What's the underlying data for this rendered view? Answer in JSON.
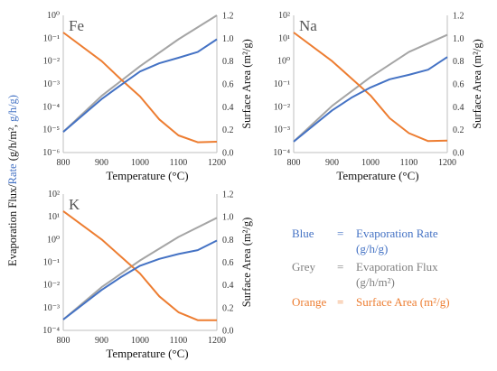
{
  "y_axis_title": {
    "black_part": "Evaporation Flux/",
    "blue_part": "Rate",
    "black_part2": " (g/h/m²,",
    "blue_part2": " g/h/g)"
  },
  "y2_axis_title": "Surface Area (m²/g)",
  "legend": [
    {
      "name": "Blue",
      "eq": "=",
      "desc1": "Evaporation Rate",
      "desc2": "(g/h/g)",
      "color": "#4472c4"
    },
    {
      "name": "Grey",
      "eq": "=",
      "desc1": "Evaporation Flux",
      "desc2": "(g/h/m²)",
      "color": "#7f7f7f"
    },
    {
      "name": "Orange",
      "eq": "=",
      "desc1": "Surface Area (m²/g)",
      "desc2": "",
      "color": "#ed7d31"
    }
  ],
  "colors": {
    "rate": "#4472c4",
    "flux": "#a5a5a5",
    "area": "#ed7d31",
    "axis": "#bfbfbf"
  },
  "chart_data": [
    {
      "type": "line",
      "title": "Fe",
      "xlabel": "Temperature (°C)",
      "x_ticks": [
        800,
        900,
        1000,
        1100,
        1200
      ],
      "xlim": [
        800,
        1200
      ],
      "y_left_scale": "log",
      "y_left_exp": [
        -6,
        -5,
        -4,
        -3,
        -2,
        -1,
        0
      ],
      "y_right_ticks": [
        "0.0",
        "0.2",
        "0.4",
        "0.6",
        "0.8",
        "1.0",
        "1.2"
      ],
      "ylim_right": [
        0,
        1.2
      ],
      "series": [
        {
          "name": "Blue",
          "axis": "left",
          "x": [
            800,
            900,
            950,
            1000,
            1050,
            1100,
            1150,
            1200
          ],
          "y": [
            8e-06,
            0.00022,
            0.0009,
            0.0035,
            0.008,
            0.014,
            0.025,
            0.09
          ]
        },
        {
          "name": "Grey",
          "axis": "left",
          "x": [
            800,
            900,
            1000,
            1100,
            1200
          ],
          "y": [
            8e-06,
            0.0003,
            0.006,
            0.09,
            1.0
          ]
        },
        {
          "name": "Orange",
          "axis": "right",
          "x": [
            800,
            900,
            950,
            1000,
            1050,
            1100,
            1150,
            1200
          ],
          "y": [
            1.05,
            0.8,
            0.64,
            0.49,
            0.29,
            0.15,
            0.09,
            0.095
          ]
        }
      ]
    },
    {
      "type": "line",
      "title": "Na",
      "xlabel": "Temperature (°C)",
      "x_ticks": [
        800,
        900,
        1000,
        1100,
        1200
      ],
      "xlim": [
        800,
        1200
      ],
      "y_left_scale": "log",
      "y_left_exp": [
        -4,
        -3,
        -2,
        -1,
        0,
        1,
        2
      ],
      "y_right_ticks": [
        "0.0",
        "0.2",
        "0.4",
        "0.6",
        "0.8",
        "1.0",
        "1.2"
      ],
      "ylim_right": [
        0,
        1.2
      ],
      "series": [
        {
          "name": "Blue",
          "axis": "left",
          "x": [
            800,
            900,
            950,
            1000,
            1050,
            1100,
            1150,
            1200
          ],
          "y": [
            0.0003,
            0.007,
            0.025,
            0.07,
            0.16,
            0.25,
            0.42,
            1.5
          ]
        },
        {
          "name": "Grey",
          "axis": "left",
          "x": [
            800,
            900,
            1000,
            1100,
            1200
          ],
          "y": [
            0.0003,
            0.011,
            0.2,
            2.5,
            14
          ]
        },
        {
          "name": "Orange",
          "axis": "right",
          "x": [
            800,
            900,
            950,
            1000,
            1050,
            1100,
            1150,
            1200
          ],
          "y": [
            1.05,
            0.8,
            0.65,
            0.5,
            0.3,
            0.17,
            0.1,
            0.105
          ]
        }
      ]
    },
    {
      "type": "line",
      "title": "K",
      "xlabel": "Temperature (°C)",
      "x_ticks": [
        800,
        900,
        1000,
        1100,
        1200
      ],
      "xlim": [
        800,
        1200
      ],
      "y_left_scale": "log",
      "y_left_exp": [
        -4,
        -3,
        -2,
        -1,
        0,
        1,
        2
      ],
      "y_right_ticks": [
        "0.0",
        "0.2",
        "0.4",
        "0.6",
        "0.8",
        "1.0",
        "1.2"
      ],
      "ylim_right": [
        0,
        1.2
      ],
      "series": [
        {
          "name": "Blue",
          "axis": "left",
          "x": [
            800,
            900,
            950,
            1000,
            1050,
            1100,
            1150,
            1200
          ],
          "y": [
            0.0003,
            0.006,
            0.022,
            0.07,
            0.14,
            0.23,
            0.34,
            0.9
          ]
        },
        {
          "name": "Grey",
          "axis": "left",
          "x": [
            800,
            900,
            1000,
            1100,
            1200
          ],
          "y": [
            0.0003,
            0.008,
            0.12,
            1.3,
            9
          ]
        },
        {
          "name": "Orange",
          "axis": "right",
          "x": [
            800,
            900,
            950,
            1000,
            1050,
            1100,
            1150,
            1200
          ],
          "y": [
            1.05,
            0.8,
            0.65,
            0.5,
            0.3,
            0.16,
            0.09,
            0.09
          ]
        }
      ]
    }
  ]
}
